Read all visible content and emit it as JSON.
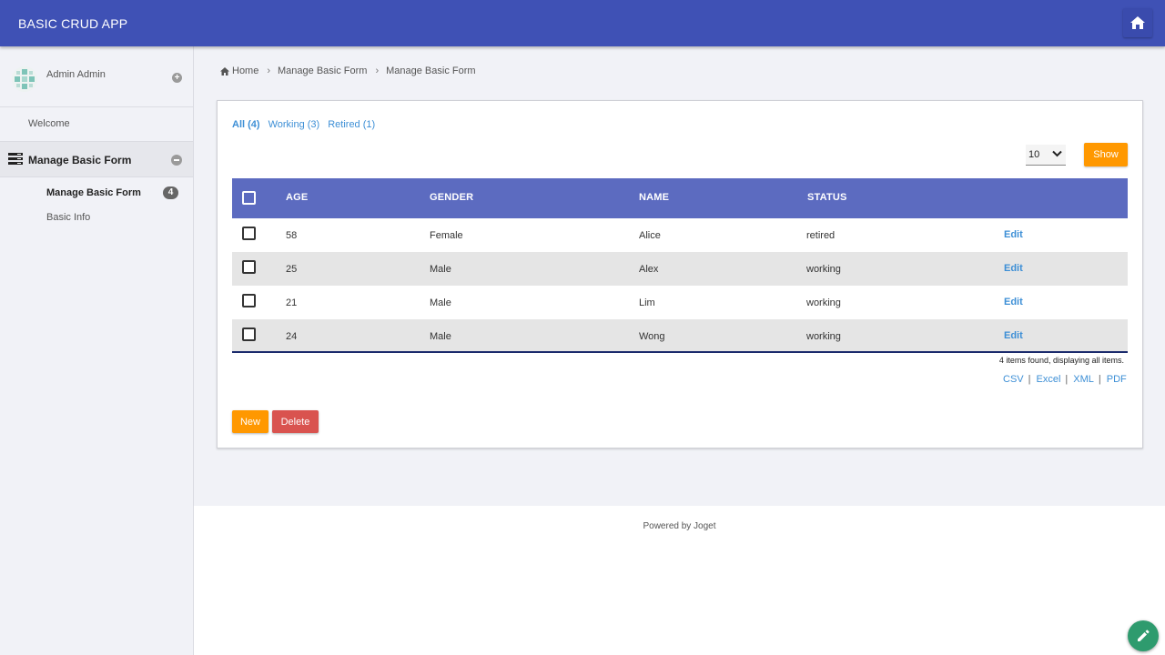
{
  "header": {
    "app_title": "BASIC CRUD APP",
    "home_icon": "home-icon"
  },
  "sidebar": {
    "user_name": "Admin Admin",
    "welcome": "Welcome",
    "category_label": "Manage Basic Form",
    "items": [
      {
        "label": "Manage Basic Form",
        "badge": "4",
        "active": true
      },
      {
        "label": "Basic Info"
      }
    ]
  },
  "breadcrumb": [
    "Home",
    "Manage Basic Form",
    "Manage Basic Form"
  ],
  "filters": [
    "All (4)",
    "Working (3)",
    "Retired (1)"
  ],
  "page_size": "10",
  "show_label": "Show",
  "table": {
    "columns": [
      "AGE",
      "GENDER",
      "NAME",
      "STATUS"
    ],
    "rows": [
      {
        "age": "58",
        "gender": "Female",
        "name": "Alice",
        "status": "retired",
        "action": "Edit"
      },
      {
        "age": "25",
        "gender": "Male",
        "name": "Alex",
        "status": "working",
        "action": "Edit"
      },
      {
        "age": "21",
        "gender": "Male",
        "name": "Lim",
        "status": "working",
        "action": "Edit"
      },
      {
        "age": "24",
        "gender": "Male",
        "name": "Wong",
        "status": "working",
        "action": "Edit"
      }
    ]
  },
  "found_text": "4 items found, displaying all items.",
  "exports": [
    "CSV",
    "Excel",
    "XML",
    "PDF"
  ],
  "buttons": {
    "new": "New",
    "delete": "Delete"
  },
  "footer": "Powered by Joget",
  "colors": {
    "topbar": "#3f51b5",
    "table_header": "#5c6bc0",
    "accent_orange": "#ff9800",
    "danger": "#d9534f",
    "link": "#3d8fd6",
    "fab": "#2e9b6e"
  }
}
